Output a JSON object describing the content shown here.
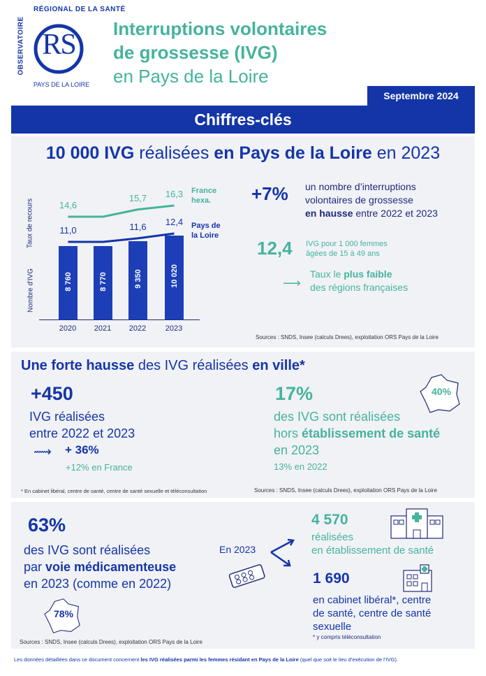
{
  "header": {
    "logo_line1": "OBSERVATOIRE",
    "logo_line2": "RÉGIONAL DE LA SANTÉ",
    "logo_letters": "RS",
    "logo_bottom": "PAYS DE LA LOIRE",
    "title_line1": "Interruptions volontaires",
    "title_line2": "de grossesse (IVG)",
    "title_line3": "en Pays de la Loire",
    "date_badge": "Septembre 2024",
    "banner": "Chiffres-clés"
  },
  "section1": {
    "headline_num": "10 000 IVG",
    "headline_mid": " réalisées ",
    "headline_region": "en Pays de la Loire",
    "headline_end": " en 2023",
    "ylabel_top": "Taux de recours",
    "ylabel_bottom": "Nombre d'IVG",
    "stat1_value": "+7%",
    "stat1_text1": "un nombre d’interruptions",
    "stat1_text2": "volontaires de grossesse",
    "stat1_text3_bold": "en hausse",
    "stat1_text3_rest": " entre 2022 et 2023",
    "stat2_value": "12,4",
    "stat2_text1": "IVG pour 1 000 femmes",
    "stat2_text2": "âgées de 15 à 49 ans",
    "stat2_note1_plain": "Taux le ",
    "stat2_note1_bold": "plus faible",
    "stat2_note2": "des régions françaises",
    "source": "Sources : SNDS, Insee (calculs Drees), exploitation ORS Pays de la Loire"
  },
  "chart_data": {
    "type": "bar",
    "categories": [
      "2020",
      "2021",
      "2022",
      "2023"
    ],
    "series": [
      {
        "name": "Nombre d'IVG",
        "values": [
          8760,
          8770,
          9350,
          10020
        ],
        "labels": [
          "8 760",
          "8 770",
          "9 350",
          "10 020"
        ]
      },
      {
        "name": "France hexa.",
        "values": [
          14.6,
          null,
          15.7,
          16.3
        ],
        "labels": [
          "14,6",
          "",
          "15,7",
          "16,3"
        ]
      },
      {
        "name": "Pays de la Loire",
        "values": [
          11.0,
          null,
          11.6,
          12.4
        ],
        "labels": [
          "11,0",
          "",
          "11,6",
          "12,4"
        ]
      }
    ],
    "legend": {
      "france_line1": "France",
      "france_line2": "hexa.",
      "pdl_line1": "Pays de",
      "pdl_line2": "la Loire"
    },
    "ylabel_top": "Taux de recours",
    "ylabel_bottom": "Nombre d'IVG",
    "colors": {
      "bars": "#1c3fb8",
      "france": "#45b39d",
      "pdl": "#1435a8"
    }
  },
  "section2": {
    "title_bold1": "Une forte hausse",
    "title_mid": " des IVG réalisées ",
    "title_bold2": "en ville*",
    "left_value": "+450",
    "left_text1": "IVG réalisées",
    "left_text2": "entre 2022 et 2023",
    "left_pct": "+ 36%",
    "left_france": "+12% en France",
    "right_value": "17%",
    "right_text1": "des IVG sont réalisées",
    "right_text2_plain": "hors ",
    "right_text2_bold": "établissement de santé",
    "right_text3": "en 2023",
    "right_text4": "13% en 2022",
    "map_pct": "40%",
    "footnote": "* En cabinet libéral, centre de santé, centre de santé sexuelle et téléconsultation",
    "source": "Sources : SNDS, Insee (calculs Drees), exploitation ORS Pays de la Loire"
  },
  "section3": {
    "value": "63%",
    "text1": "des IVG sont réalisées",
    "text2_plain": "par ",
    "text2_bold": "voie médicamenteuse",
    "text3": "en 2023 (comme en 2022)",
    "map_pct": "78%",
    "year_label": "En 2023",
    "hosp_value": "4 570",
    "hosp_text1": "réalisées",
    "hosp_text2": "en établissement de santé",
    "city_value": "1 690",
    "city_text1": "en cabinet libéral*, centre",
    "city_text2": "de santé, centre de santé",
    "city_text3": "sexuelle",
    "city_note": "* y compris téléconsultation",
    "source": "Sources : SNDS, Insee (calculs Drees), exploitation ORS Pays de la Loire"
  },
  "footer": {
    "text_plain1": "Les données détaillées dans ce document concernent ",
    "text_bold": "les IVG réalisées parmi les femmes résidant en Pays de la Loire",
    "text_plain2": " (quel que soit le lieu d’exécution de l’IVG)."
  }
}
